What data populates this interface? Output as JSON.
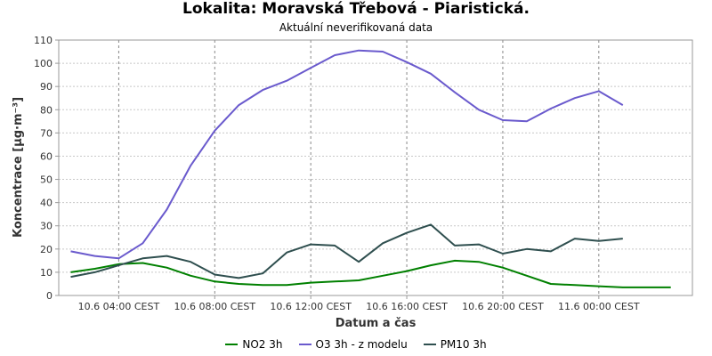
{
  "chart_data": {
    "type": "line",
    "title": "Lokalita: Moravská Třebová - Piaristická.",
    "subtitle": "Aktuální neverifikovaná data",
    "xlabel": "Datum a čas",
    "ylabel": "Koncentrace [µg·m⁻³]",
    "ylim": [
      0,
      110
    ],
    "yticks": [
      0,
      10,
      20,
      30,
      40,
      50,
      60,
      70,
      80,
      90,
      100,
      110
    ],
    "xtick_labels": [
      "10.6 04:00 CEST",
      "10.6 08:00 CEST",
      "10.6 12:00 CEST",
      "10.6 16:00 CEST",
      "10.6 20:00 CEST",
      "11.6 00:00 CEST"
    ],
    "xtick_hours": [
      4,
      8,
      12,
      16,
      20,
      24
    ],
    "xlim_hours": [
      1.5,
      27.9
    ],
    "grid": true,
    "legend_position": "bottom",
    "x_hours": [
      2,
      3,
      4,
      5,
      6,
      7,
      8,
      9,
      10,
      11,
      12,
      13,
      14,
      15,
      16,
      17,
      18,
      19,
      20,
      21,
      22,
      23,
      24,
      25,
      26,
      27
    ],
    "series": [
      {
        "name": "NO2 3h",
        "color": "#008000",
        "values": [
          10,
          11.5,
          13.5,
          14,
          12,
          8.5,
          6,
          5,
          4.5,
          4.5,
          5.5,
          6,
          6.5,
          8.5,
          10.5,
          13,
          15,
          14.5,
          12,
          8.5,
          5,
          4.5,
          4,
          3.5,
          3.5,
          3.5
        ]
      },
      {
        "name": "O3 3h - z modelu",
        "color": "#6a5acd",
        "values": [
          19,
          17,
          16,
          22.5,
          37,
          56,
          71,
          82,
          88.5,
          92.5,
          98,
          103.5,
          105.5,
          105,
          100.5,
          95.5,
          87.5,
          80,
          75.5,
          75,
          80.5,
          85,
          88,
          82,
          null,
          null
        ]
      },
      {
        "name": "PM10 3h",
        "color": "#2f4f4f",
        "values": [
          8,
          10,
          13,
          16,
          17,
          14.5,
          9,
          7.5,
          9.5,
          18.5,
          22,
          21.5,
          14.5,
          22.5,
          27,
          30.5,
          21.5,
          22,
          18,
          20,
          19,
          24.5,
          23.5,
          24.5,
          null,
          null
        ]
      }
    ]
  }
}
